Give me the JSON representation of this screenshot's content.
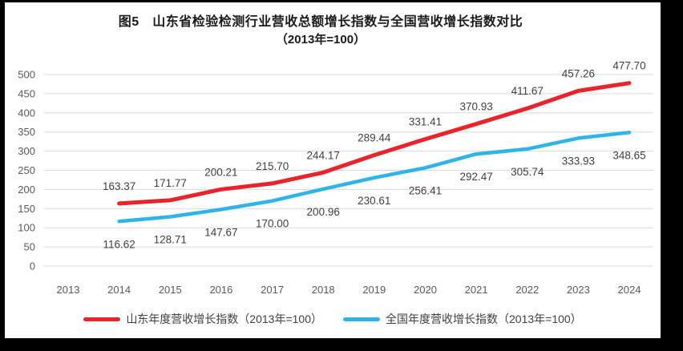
{
  "chart": {
    "title_line1": "图5　山东省检验检测行业营收总额增长指数与全国营收增长指数对比",
    "title_line2": "（2013年=100）",
    "legend": [
      {
        "label": "山东年度营收增长指数（2013年=100）",
        "color": "#e8232a"
      },
      {
        "label": "全国年度营收增长指数（2013年=100）",
        "color": "#2fb3e8"
      }
    ]
  },
  "chart_data": {
    "type": "line",
    "title": "图5 山东省检验检测行业营收总额增长指数与全国营收增长指数对比（2013年=100）",
    "x_ticks": [
      2013,
      2014,
      2015,
      2016,
      2017,
      2018,
      2019,
      2020,
      2021,
      2022,
      2023,
      2024
    ],
    "ylim": [
      0,
      500
    ],
    "y_tick_step": 50,
    "grid": true,
    "legend_position": "bottom",
    "colors": {
      "grid": "#d9d9d9",
      "tick_text": "#595959",
      "data_label_text": "#404040"
    },
    "series": [
      {
        "name": "山东年度营收增长指数（2013年=100）",
        "color": "#e8232a",
        "x": [
          2014,
          2015,
          2016,
          2017,
          2018,
          2019,
          2020,
          2021,
          2022,
          2023,
          2024
        ],
        "values": [
          163.37,
          171.77,
          200.21,
          215.7,
          244.17,
          289.44,
          331.41,
          370.93,
          411.67,
          457.26,
          477.7
        ]
      },
      {
        "name": "全国年度营收增长指数（2013年=100）",
        "color": "#2fb3e8",
        "x": [
          2014,
          2015,
          2016,
          2017,
          2018,
          2019,
          2020,
          2021,
          2022,
          2023,
          2024
        ],
        "values": [
          116.62,
          128.71,
          147.67,
          170.0,
          200.96,
          230.61,
          256.41,
          292.47,
          305.74,
          333.93,
          348.65
        ]
      }
    ]
  }
}
